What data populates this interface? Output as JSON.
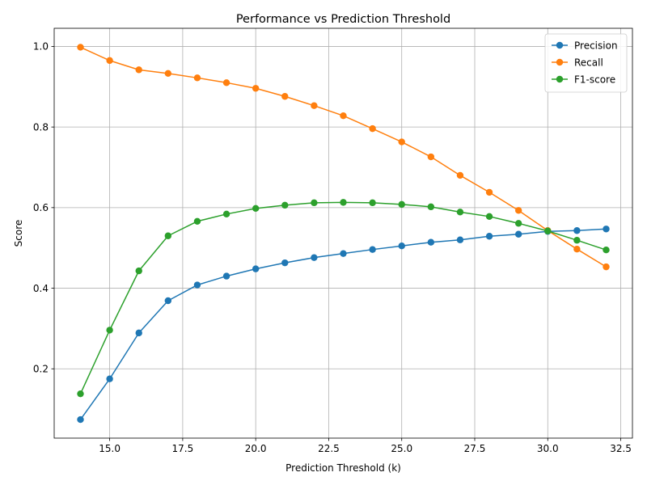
{
  "chart_data": {
    "type": "line",
    "title": "Performance vs Prediction Threshold",
    "xlabel": "Prediction Threshold (k)",
    "ylabel": "Score",
    "xlim": [
      13.1,
      32.9
    ],
    "ylim": [
      0.028,
      1.045
    ],
    "xticks": [
      15.0,
      17.5,
      20.0,
      22.5,
      25.0,
      27.5,
      30.0,
      32.5
    ],
    "xtick_labels": [
      "15.0",
      "17.5",
      "20.0",
      "22.5",
      "25.0",
      "27.5",
      "30.0",
      "32.5"
    ],
    "yticks": [
      0.2,
      0.4,
      0.6,
      0.8,
      1.0
    ],
    "ytick_labels": [
      "0.2",
      "0.4",
      "0.6",
      "0.8",
      "1.0"
    ],
    "grid": true,
    "legend_position": "top-right",
    "x": [
      14,
      15,
      16,
      17,
      18,
      19,
      20,
      21,
      22,
      23,
      24,
      25,
      26,
      27,
      28,
      29,
      30,
      31,
      32
    ],
    "series": [
      {
        "name": "Precision",
        "color": "#1f77b4",
        "values": [
          0.074,
          0.175,
          0.289,
          0.369,
          0.408,
          0.43,
          0.448,
          0.463,
          0.476,
          0.486,
          0.496,
          0.505,
          0.514,
          0.52,
          0.529,
          0.534,
          0.541,
          0.543,
          0.547
        ]
      },
      {
        "name": "Recall",
        "color": "#ff7f0e",
        "values": [
          0.998,
          0.965,
          0.942,
          0.933,
          0.922,
          0.91,
          0.896,
          0.876,
          0.853,
          0.828,
          0.796,
          0.763,
          0.726,
          0.68,
          0.638,
          0.593,
          0.543,
          0.497,
          0.453
        ]
      },
      {
        "name": "F1-score",
        "color": "#2ca02c",
        "values": [
          0.138,
          0.296,
          0.443,
          0.53,
          0.566,
          0.584,
          0.598,
          0.606,
          0.612,
          0.613,
          0.612,
          0.608,
          0.602,
          0.589,
          0.578,
          0.561,
          0.542,
          0.519,
          0.495
        ]
      }
    ]
  }
}
